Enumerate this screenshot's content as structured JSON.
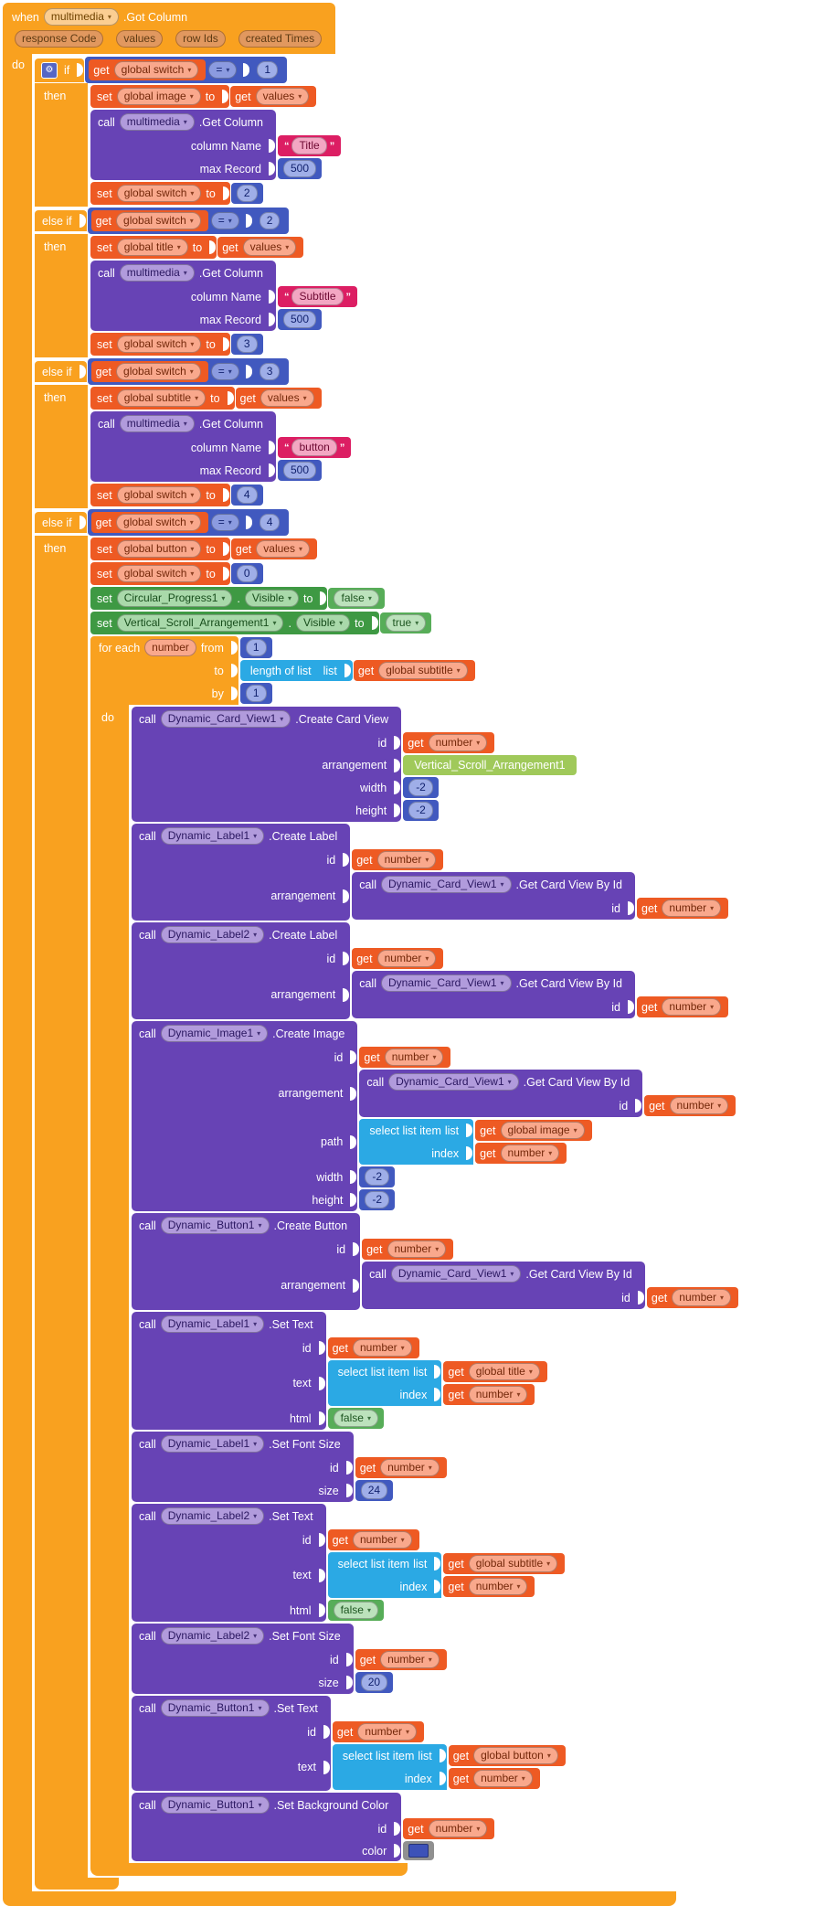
{
  "colors": {
    "orange": "#F9A11F",
    "orange_chip_bg": "#E1985F",
    "orange_chip_text": "#5D3A13",
    "event_chip_bg": "#FBCE92",
    "event_chip_text": "#6E4200",
    "red": "#EE5A23",
    "red_pill_bg": "#F9A88C",
    "red_pill_text": "#74280A",
    "purple": "#6743B5",
    "purple_chip_bg": "#B19BDC",
    "purple_chip_text": "#2A1760",
    "indigo": "#4159BF",
    "indigo_pill_bg": "#9FAEE8",
    "indigo_pill_text": "#12226E",
    "op_chip_bg": "#8B9BE0",
    "green": "#3E9943",
    "green_chip_bg": "#A9D9AA",
    "green_chip_text": "#174D1B",
    "logic_green": "#57AD58",
    "logic_chip_bg": "#BCE2BC",
    "logic_chip_text": "#1D5520",
    "cyan": "#2BA9E4",
    "magenta": "#DC1E63",
    "magenta_pill_bg": "#F3A7C3",
    "magenta_pill_text": "#6E0A33",
    "component_green": "#A0C95A",
    "gray": "#909090",
    "gear_bg": "#5566C4"
  },
  "labels": {
    "when": "when",
    "do": "do",
    "if": "if",
    "then": "then",
    "else_if": "else if",
    "set": "set",
    "to": "to",
    "call": "call",
    "get": "get",
    "dot": ".",
    "for_each": "for each",
    "from": "from",
    "by": "by",
    "length_of_list": "length of list",
    "list": "list",
    "select_list_item": "select list item",
    "index": "index"
  },
  "workspace": {
    "type": "event",
    "component": "multimedia",
    "method": ".Got Column",
    "params": [
      "response Code",
      "values",
      "row Ids",
      "created Times"
    ],
    "body": [
      {
        "type": "controls_if",
        "clauses": [
          {
            "cond": {
              "type": "compare",
              "left": {
                "type": "get",
                "var": "global switch"
              },
              "op": "=",
              "right": {
                "type": "number",
                "value": "1"
              }
            },
            "then": [
              {
                "type": "set_var",
                "var": "global image",
                "value": {
                  "type": "get",
                  "var": "values"
                }
              },
              {
                "type": "call",
                "component": "multimedia",
                "method": ".Get Column",
                "args": [
                  {
                    "label": "column Name",
                    "value": {
                      "type": "text",
                      "value": "Title"
                    }
                  },
                  {
                    "label": "max Record",
                    "value": {
                      "type": "number",
                      "value": "500"
                    }
                  }
                ]
              },
              {
                "type": "set_var",
                "var": "global switch",
                "value": {
                  "type": "number",
                  "value": "2"
                }
              }
            ]
          },
          {
            "cond": {
              "type": "compare",
              "left": {
                "type": "get",
                "var": "global switch"
              },
              "op": "=",
              "right": {
                "type": "number",
                "value": "2"
              }
            },
            "then": [
              {
                "type": "set_var",
                "var": "global title",
                "value": {
                  "type": "get",
                  "var": "values"
                }
              },
              {
                "type": "call",
                "component": "multimedia",
                "method": ".Get Column",
                "args": [
                  {
                    "label": "column Name",
                    "value": {
                      "type": "text",
                      "value": "Subtitle"
                    }
                  },
                  {
                    "label": "max Record",
                    "value": {
                      "type": "number",
                      "value": "500"
                    }
                  }
                ]
              },
              {
                "type": "set_var",
                "var": "global switch",
                "value": {
                  "type": "number",
                  "value": "3"
                }
              }
            ]
          },
          {
            "cond": {
              "type": "compare",
              "left": {
                "type": "get",
                "var": "global switch"
              },
              "op": "=",
              "right": {
                "type": "number",
                "value": "3"
              }
            },
            "then": [
              {
                "type": "set_var",
                "var": "global subtitle",
                "value": {
                  "type": "get",
                  "var": "values"
                }
              },
              {
                "type": "call",
                "component": "multimedia",
                "method": ".Get Column",
                "args": [
                  {
                    "label": "column Name",
                    "value": {
                      "type": "text",
                      "value": "button"
                    }
                  },
                  {
                    "label": "max Record",
                    "value": {
                      "type": "number",
                      "value": "500"
                    }
                  }
                ]
              },
              {
                "type": "set_var",
                "var": "global switch",
                "value": {
                  "type": "number",
                  "value": "4"
                }
              }
            ]
          },
          {
            "cond": {
              "type": "compare",
              "left": {
                "type": "get",
                "var": "global switch"
              },
              "op": "=",
              "right": {
                "type": "number",
                "value": "4"
              }
            },
            "then": [
              {
                "type": "set_var",
                "var": "global button",
                "value": {
                  "type": "get",
                  "var": "values"
                }
              },
              {
                "type": "set_var",
                "var": "global switch",
                "value": {
                  "type": "number",
                  "value": "0"
                }
              },
              {
                "type": "set_prop",
                "component": "Circular_Progress1",
                "prop": "Visible",
                "value": {
                  "type": "logic",
                  "value": "false"
                }
              },
              {
                "type": "set_prop",
                "component": "Vertical_Scroll_Arrangement1",
                "prop": "Visible",
                "value": {
                  "type": "logic",
                  "value": "true"
                }
              },
              {
                "type": "for_each",
                "var": "number",
                "from": {
                  "type": "number",
                  "value": "1"
                },
                "to": {
                  "type": "list_length",
                  "list": {
                    "type": "get",
                    "var": "global subtitle"
                  }
                },
                "by": {
                  "type": "number",
                  "value": "1"
                },
                "body": [
                  {
                    "type": "call",
                    "component": "Dynamic_Card_View1",
                    "method": ".Create Card View",
                    "args": [
                      {
                        "label": "id",
                        "value": {
                          "type": "get",
                          "var": "number"
                        }
                      },
                      {
                        "label": "arrangement",
                        "value": {
                          "type": "component",
                          "name": "Vertical_Scroll_Arrangement1"
                        }
                      },
                      {
                        "label": "width",
                        "value": {
                          "type": "number",
                          "value": "-2"
                        }
                      },
                      {
                        "label": "height",
                        "value": {
                          "type": "number",
                          "value": "-2"
                        }
                      }
                    ]
                  },
                  {
                    "type": "call",
                    "component": "Dynamic_Label1",
                    "method": ".Create Label",
                    "args": [
                      {
                        "label": "id",
                        "value": {
                          "type": "get",
                          "var": "number"
                        }
                      },
                      {
                        "label": "arrangement",
                        "value": {
                          "type": "call",
                          "component": "Dynamic_Card_View1",
                          "method": ".Get Card View By Id",
                          "args": [
                            {
                              "label": "id",
                              "value": {
                                "type": "get",
                                "var": "number"
                              }
                            }
                          ]
                        }
                      }
                    ]
                  },
                  {
                    "type": "call",
                    "component": "Dynamic_Label2",
                    "method": ".Create Label",
                    "args": [
                      {
                        "label": "id",
                        "value": {
                          "type": "get",
                          "var": "number"
                        }
                      },
                      {
                        "label": "arrangement",
                        "value": {
                          "type": "call",
                          "component": "Dynamic_Card_View1",
                          "method": ".Get Card View By Id",
                          "args": [
                            {
                              "label": "id",
                              "value": {
                                "type": "get",
                                "var": "number"
                              }
                            }
                          ]
                        }
                      }
                    ]
                  },
                  {
                    "type": "call",
                    "component": "Dynamic_Image1",
                    "method": ".Create Image",
                    "args": [
                      {
                        "label": "id",
                        "value": {
                          "type": "get",
                          "var": "number"
                        }
                      },
                      {
                        "label": "arrangement",
                        "value": {
                          "type": "call",
                          "component": "Dynamic_Card_View1",
                          "method": ".Get Card View By Id",
                          "args": [
                            {
                              "label": "id",
                              "value": {
                                "type": "get",
                                "var": "number"
                              }
                            }
                          ]
                        }
                      },
                      {
                        "label": "path",
                        "value": {
                          "type": "list_select",
                          "list": {
                            "type": "get",
                            "var": "global image"
                          },
                          "index": {
                            "type": "get",
                            "var": "number"
                          }
                        }
                      },
                      {
                        "label": "width",
                        "value": {
                          "type": "number",
                          "value": "-2"
                        }
                      },
                      {
                        "label": "height",
                        "value": {
                          "type": "number",
                          "value": "-2"
                        }
                      }
                    ]
                  },
                  {
                    "type": "call",
                    "component": "Dynamic_Button1",
                    "method": ".Create Button",
                    "args": [
                      {
                        "label": "id",
                        "value": {
                          "type": "get",
                          "var": "number"
                        }
                      },
                      {
                        "label": "arrangement",
                        "value": {
                          "type": "call",
                          "component": "Dynamic_Card_View1",
                          "method": ".Get Card View By Id",
                          "args": [
                            {
                              "label": "id",
                              "value": {
                                "type": "get",
                                "var": "number"
                              }
                            }
                          ]
                        }
                      }
                    ]
                  },
                  {
                    "type": "call",
                    "component": "Dynamic_Label1",
                    "method": ".Set Text",
                    "args": [
                      {
                        "label": "id",
                        "value": {
                          "type": "get",
                          "var": "number"
                        }
                      },
                      {
                        "label": "text",
                        "value": {
                          "type": "list_select",
                          "list": {
                            "type": "get",
                            "var": "global title"
                          },
                          "index": {
                            "type": "get",
                            "var": "number"
                          }
                        }
                      },
                      {
                        "label": "html",
                        "value": {
                          "type": "logic",
                          "value": "false"
                        }
                      }
                    ]
                  },
                  {
                    "type": "call",
                    "component": "Dynamic_Label1",
                    "method": ".Set Font Size",
                    "args": [
                      {
                        "label": "id",
                        "value": {
                          "type": "get",
                          "var": "number"
                        }
                      },
                      {
                        "label": "size",
                        "value": {
                          "type": "number",
                          "value": "24"
                        }
                      }
                    ]
                  },
                  {
                    "type": "call",
                    "component": "Dynamic_Label2",
                    "method": ".Set Text",
                    "args": [
                      {
                        "label": "id",
                        "value": {
                          "type": "get",
                          "var": "number"
                        }
                      },
                      {
                        "label": "text",
                        "value": {
                          "type": "list_select",
                          "list": {
                            "type": "get",
                            "var": "global subtitle"
                          },
                          "index": {
                            "type": "get",
                            "var": "number"
                          }
                        }
                      },
                      {
                        "label": "html",
                        "value": {
                          "type": "logic",
                          "value": "false"
                        }
                      }
                    ]
                  },
                  {
                    "type": "call",
                    "component": "Dynamic_Label2",
                    "method": ".Set Font Size",
                    "args": [
                      {
                        "label": "id",
                        "value": {
                          "type": "get",
                          "var": "number"
                        }
                      },
                      {
                        "label": "size",
                        "value": {
                          "type": "number",
                          "value": "20"
                        }
                      }
                    ]
                  },
                  {
                    "type": "call",
                    "component": "Dynamic_Button1",
                    "method": ".Set Text",
                    "args": [
                      {
                        "label": "id",
                        "value": {
                          "type": "get",
                          "var": "number"
                        }
                      },
                      {
                        "label": "text",
                        "value": {
                          "type": "list_select",
                          "list": {
                            "type": "get",
                            "var": "global button"
                          },
                          "index": {
                            "type": "get",
                            "var": "number"
                          }
                        }
                      }
                    ]
                  },
                  {
                    "type": "call",
                    "component": "Dynamic_Button1",
                    "method": ".Set Background Color",
                    "args": [
                      {
                        "label": "id",
                        "value": {
                          "type": "get",
                          "var": "number"
                        }
                      },
                      {
                        "label": "color",
                        "value": {
                          "type": "color",
                          "hex": "#3D52B8"
                        }
                      }
                    ]
                  }
                ]
              }
            ]
          }
        ]
      }
    ]
  }
}
